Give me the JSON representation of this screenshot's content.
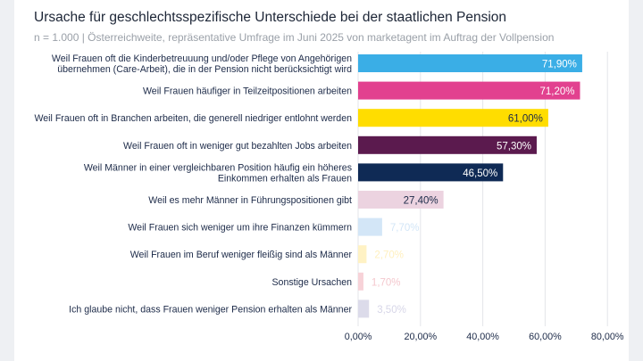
{
  "header": {
    "title": "Ursache für geschlechtsspezifische Unterschiede bei der staatlichen Pension",
    "subtitle": "n = 1.000 | Österreichweite, repräsentative Umfrage im Juni 2025 von marketagent im Auftrag der Vollpension"
  },
  "chart_data": {
    "type": "bar",
    "orientation": "horizontal",
    "title": "Ursache für geschlechtsspezifische Unterschiede bei der staatlichen Pension",
    "subtitle": "n = 1.000 | Österreichweite, repräsentative Umfrage im Juni 2025 von marketagent im Auftrag der Vollpension",
    "xlim": [
      0,
      80
    ],
    "xticks": [
      0,
      20,
      40,
      60,
      80
    ],
    "xtick_labels": [
      "0,00%",
      "20,00%",
      "40,00%",
      "60,00%",
      "80,00%"
    ],
    "grid": "vertical",
    "legend": "none",
    "bars": [
      {
        "label": [
          "Weil Frauen oft die Kinderbetreuuung und/oder Pflege von Angehörigen",
          "übernehmen (Care-Arbeit), die in der Pension nicht berücksichtigt wird"
        ],
        "value": 71.9,
        "value_label": "71,90%",
        "color": "#3aaee6",
        "label_color": "#ffffff"
      },
      {
        "label": [
          "Weil Frauen häufiger in Teilzeitpositionen arbeiten"
        ],
        "value": 71.2,
        "value_label": "71,20%",
        "color": "#e2418f",
        "label_color": "#ffffff"
      },
      {
        "label": [
          "Weil Frauen oft in Branchen arbeiten, die generell niedriger entlohnt werden"
        ],
        "value": 61.0,
        "value_label": "61,00%",
        "color": "#ffdd00",
        "label_color": "#1c2a48"
      },
      {
        "label": [
          "Weil Frauen oft in weniger gut bezahlten Jobs arbeiten"
        ],
        "value": 57.3,
        "value_label": "57,30%",
        "color": "#5b1a4e",
        "label_color": "#ffffff"
      },
      {
        "label": [
          "Weil Männer in einer vergleichbaren Position häufig ein höheres",
          "Einkommen erhalten als Frauen"
        ],
        "value": 46.5,
        "value_label": "46,50%",
        "color": "#0f2a55",
        "label_color": "#ffffff"
      },
      {
        "label": [
          "Weil es mehr Männer in Führungspositionen gibt"
        ],
        "value": 27.4,
        "value_label": "27,40%",
        "color": "#ecd3e0",
        "label_color": "#1c2a48"
      },
      {
        "label": [
          "Weil Frauen sich weniger um ihre Finanzen kümmern"
        ],
        "value": 7.7,
        "value_label": "7,70%",
        "color": "#d3e6f7",
        "label_color": "#d3e6f7"
      },
      {
        "label": [
          "Weil Frauen im Beruf weniger fleißig sind als Männer"
        ],
        "value": 2.7,
        "value_label": "2,70%",
        "color": "#fff2c4",
        "label_color": "#fff0bf"
      },
      {
        "label": [
          "Sonstige Ursachen"
        ],
        "value": 1.7,
        "value_label": "1,70%",
        "color": "#f7d2d8",
        "label_color": "#f4c8ce"
      },
      {
        "label": [
          "Ich glaube nicht, dass Frauen weniger Pension erhalten als Männer"
        ],
        "value": 3.5,
        "value_label": "3,50%",
        "color": "#dcdbea",
        "label_color": "#d7d6e8"
      }
    ]
  }
}
